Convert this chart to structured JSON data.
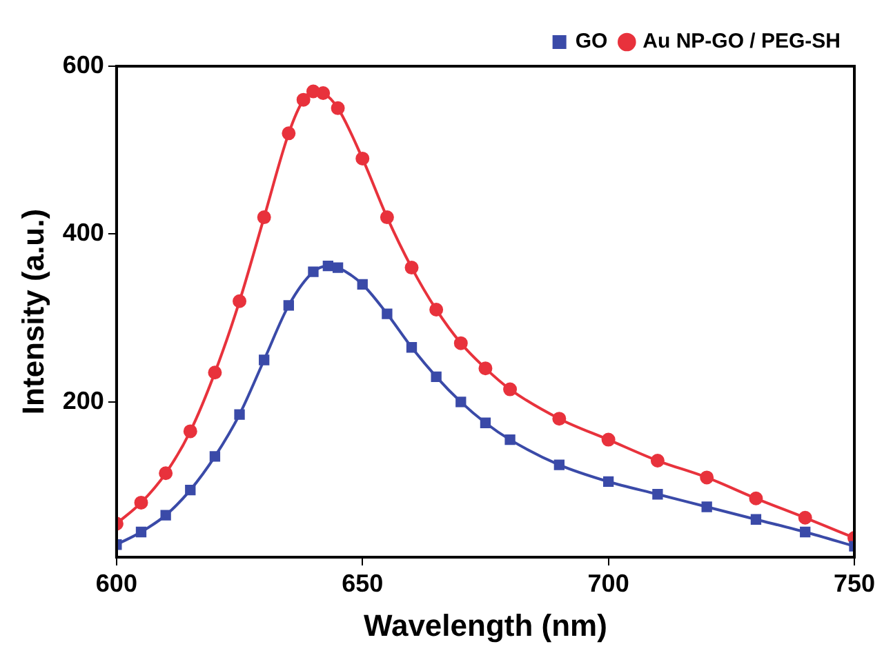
{
  "chart_data": {
    "type": "line",
    "xlabel": "Wavelength (nm)",
    "ylabel": "Intensity (a.u.)",
    "xlim": [
      600,
      750
    ],
    "xticks": [
      600,
      650,
      700,
      750
    ],
    "ylim": [
      15,
      600
    ],
    "yticks": [
      200,
      400,
      600
    ],
    "grid": false,
    "legend": "top right",
    "line_style": "solid",
    "series": [
      {
        "name": "GO",
        "color": "#3a4aa8",
        "marker": "square",
        "x": [
          600,
          605,
          610,
          615,
          620,
          625,
          630,
          635,
          640,
          643,
          645,
          650,
          655,
          660,
          665,
          670,
          675,
          680,
          690,
          700,
          710,
          720,
          730,
          740,
          750
        ],
        "values": [
          30,
          45,
          65,
          95,
          135,
          185,
          250,
          315,
          355,
          362,
          360,
          340,
          305,
          265,
          230,
          200,
          175,
          155,
          125,
          105,
          90,
          75,
          60,
          45,
          28
        ]
      },
      {
        "name": "Au NP-GO / PEG-SH",
        "color": "#e8323c",
        "marker": "circle",
        "x": [
          600,
          605,
          610,
          615,
          620,
          625,
          630,
          635,
          638,
          640,
          642,
          645,
          650,
          655,
          660,
          665,
          670,
          675,
          680,
          690,
          700,
          710,
          720,
          730,
          740,
          750
        ],
        "values": [
          55,
          80,
          115,
          165,
          235,
          320,
          420,
          520,
          560,
          570,
          568,
          550,
          490,
          420,
          360,
          310,
          270,
          240,
          215,
          180,
          155,
          130,
          110,
          85,
          62,
          38
        ]
      }
    ]
  }
}
